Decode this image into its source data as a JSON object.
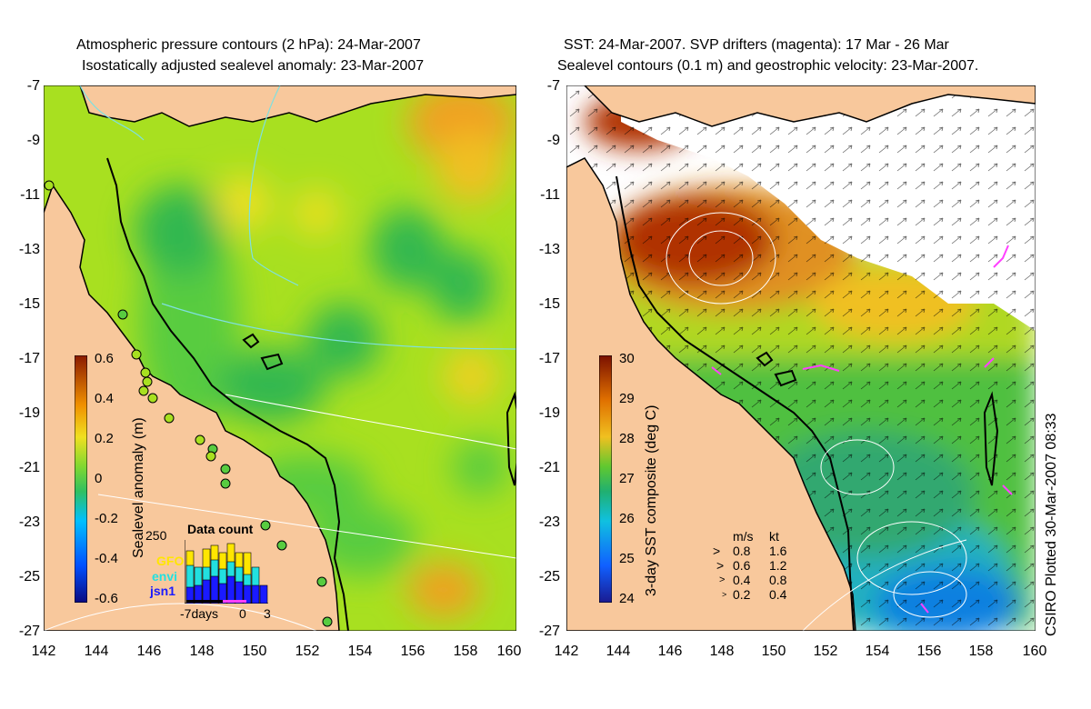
{
  "left_panel": {
    "title_line1": "Atmospheric pressure contours (2 hPa): 24-Mar-2007",
    "title_line2": "Isostatically adjusted sealevel anomaly: 23-Mar-2007",
    "colorbar_label": "Sealevel anomaly (m)",
    "colorbar_ticks": [
      "0.6",
      "0.4",
      "0.2",
      "0",
      "-0.2",
      "-0.4",
      "-0.6"
    ],
    "inset": {
      "title": "Data count",
      "y_max_label": "250",
      "legend": [
        {
          "label": "GFO",
          "color": "#ffe600"
        },
        {
          "label": "envi",
          "color": "#22e0e0"
        },
        {
          "label": "jsn1",
          "color": "#1a1aff"
        }
      ],
      "x_labels": [
        "-7days",
        "0",
        "3"
      ]
    }
  },
  "right_panel": {
    "title_line1": "SST: 24-Mar-2007. SVP drifters (magenta): 17 Mar - 26 Mar",
    "title_line2": "Sealevel contours (0.1 m) and geostrophic velocity: 23-Mar-2007.",
    "colorbar_label": "3-day SST composite (deg C)",
    "colorbar_ticks": [
      "30",
      "29",
      "28",
      "27",
      "26",
      "25",
      "24"
    ],
    "velocity_key": {
      "header_ms": "m/s",
      "header_kt": "kt",
      "rows": [
        {
          "ms": "0.8",
          "kt": "1.6"
        },
        {
          "ms": "0.6",
          "kt": "1.2"
        },
        {
          "ms": "0.4",
          "kt": "0.8"
        },
        {
          "ms": "0.2",
          "kt": "0.4"
        }
      ]
    },
    "credit": "CSIRO Plotted 30-Mar-2007 08:33"
  },
  "axes": {
    "y_ticks": [
      "-7",
      "-9",
      "-11",
      "-13",
      "-15",
      "-17",
      "-19",
      "-21",
      "-23",
      "-25",
      "-27"
    ],
    "x_ticks": [
      "142",
      "144",
      "146",
      "148",
      "150",
      "152",
      "154",
      "156",
      "158",
      "160"
    ]
  },
  "colors": {
    "land": "#f8c89c",
    "sla_ramp": [
      "#0a0a80",
      "#0050ff",
      "#00c0ff",
      "#40d080",
      "#38c838",
      "#a8e020",
      "#f0e020",
      "#f09000",
      "#c04000",
      "#8a1a00"
    ],
    "sst_ramp": [
      "#1a1a90",
      "#1060ff",
      "#10c0e0",
      "#20b070",
      "#40c040",
      "#b0e020",
      "#f0c020",
      "#e07000",
      "#b03000",
      "#7a1000"
    ]
  }
}
